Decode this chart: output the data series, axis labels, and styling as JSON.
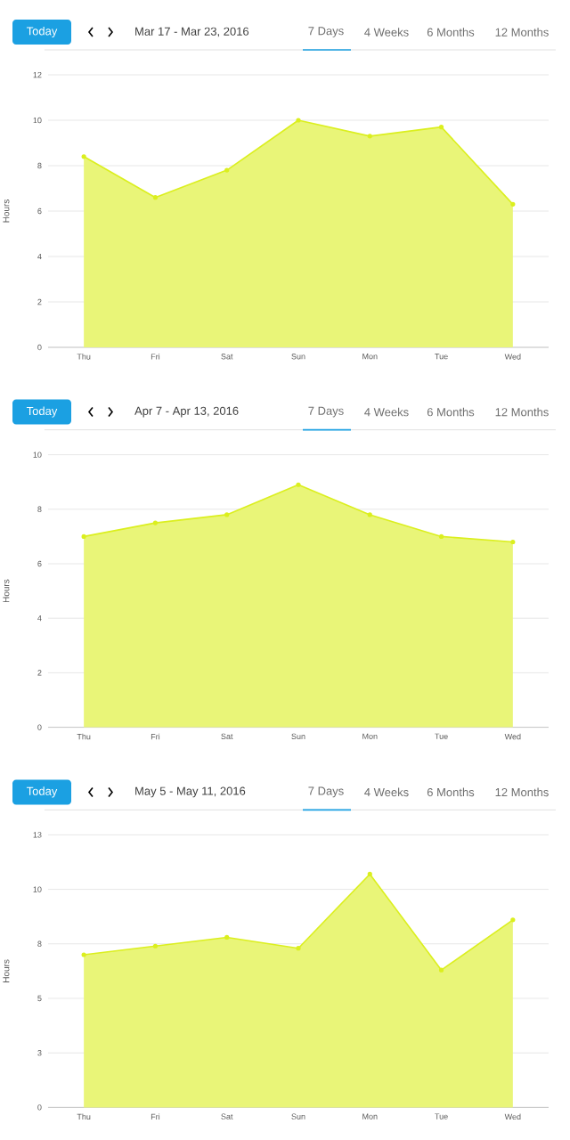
{
  "chart_data": [
    {
      "type": "area",
      "title": "Mar 17 - Mar 23, 2016",
      "ylabel": "Hours",
      "annotations": [
        "Today",
        "7 Days",
        "4 Weeks",
        "6 Months",
        "12 Months"
      ],
      "categories": [
        "Thu",
        "Fri",
        "Sat",
        "Sun",
        "Mon",
        "Tue",
        "Wed"
      ],
      "values": [
        8.4,
        6.6,
        7.8,
        10.0,
        9.3,
        9.7,
        6.3
      ],
      "color": "#dbef1e",
      "ylim": [
        0,
        12
      ],
      "yticks": [
        0,
        2,
        4,
        6,
        8,
        10,
        12
      ],
      "grid": "y",
      "marker": "circle"
    },
    {
      "type": "area",
      "title": "Apr 7 - Apr 13, 2016",
      "ylabel": "Hours",
      "annotations": [
        "Today",
        "7 Days",
        "4 Weeks",
        "6 Months",
        "12 Months"
      ],
      "categories": [
        "Thu",
        "Fri",
        "Sat",
        "Sun",
        "Mon",
        "Tue",
        "Wed"
      ],
      "values": [
        7.0,
        7.5,
        7.8,
        8.9,
        7.8,
        7.0,
        6.8
      ],
      "color": "#dbef1e",
      "ylim": [
        0,
        10
      ],
      "yticks": [
        0,
        2,
        4,
        6,
        8,
        10
      ],
      "grid": "y",
      "marker": "circle"
    },
    {
      "type": "area",
      "title": "May 5 - May 11, 2016",
      "ylabel": "Hours",
      "annotations": [
        "Today",
        "7 Days",
        "4 Weeks",
        "6 Months",
        "12 Months"
      ],
      "categories": [
        "Thu",
        "Fri",
        "Sat",
        "Sun",
        "Mon",
        "Tue",
        "Wed"
      ],
      "values": [
        7.0,
        7.4,
        7.8,
        7.3,
        10.7,
        6.3,
        8.6
      ],
      "color": "#dbef1e",
      "ylim": [
        0,
        12.5
      ],
      "yticks": [
        0,
        {
          "value": 2.5,
          "label": "3"
        },
        5,
        {
          "value": 7.5,
          "label": "8"
        },
        10,
        {
          "value": 12.5,
          "label": "13"
        }
      ],
      "grid": "y",
      "marker": "circle"
    }
  ]
}
